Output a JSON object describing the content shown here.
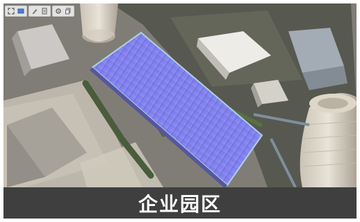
{
  "caption": {
    "title": "企业园区"
  },
  "toolbar": {
    "groups": [
      {
        "icons": [
          "fullscreen-icon",
          "screen-icon"
        ]
      },
      {
        "icons": [
          "pen-icon",
          "document-icon"
        ]
      },
      {
        "icons": [
          "settings-icon",
          "copy-icon"
        ]
      }
    ]
  },
  "colors": {
    "solar_panel": "#7d7cf0",
    "caption_bg": "#3f3f3f",
    "caption_text": "#ffffff"
  }
}
